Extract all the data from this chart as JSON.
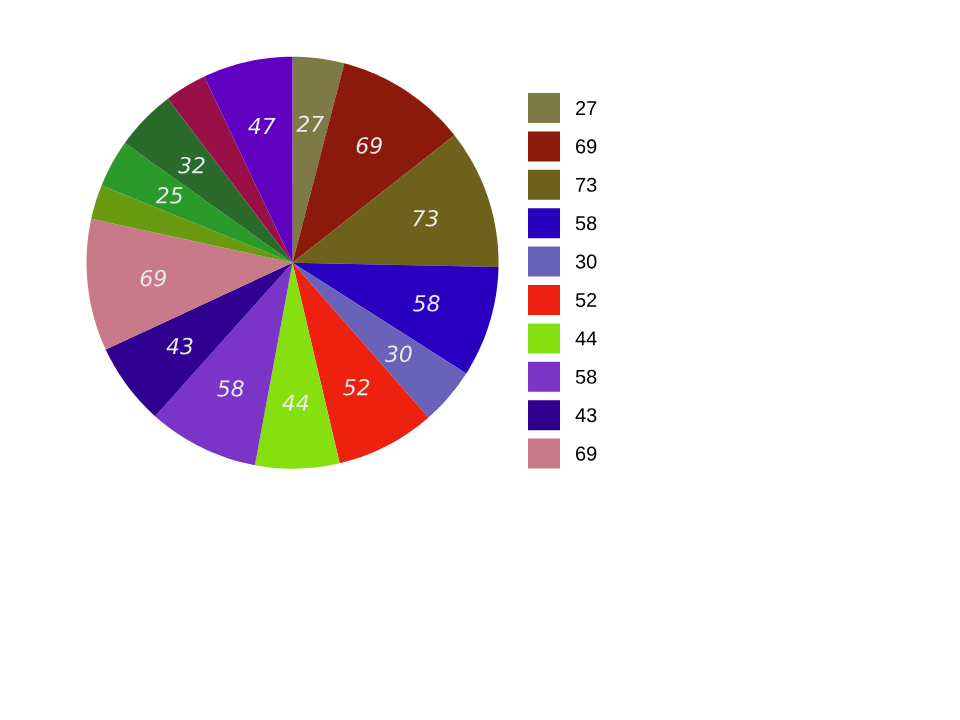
{
  "chart_data": {
    "type": "pie",
    "legend": "right",
    "categories": [
      "27",
      "69",
      "73",
      "58",
      "30",
      "52",
      "44",
      "58",
      "43",
      "69",
      null,
      null,
      null,
      null,
      null
    ],
    "values": [
      27,
      69,
      73,
      58,
      30,
      52,
      44,
      58,
      43,
      69,
      18,
      25,
      32,
      22,
      47
    ],
    "value_labels": [
      "27",
      "69",
      "73",
      "58",
      "30",
      "52",
      "44",
      "58",
      "43",
      "69",
      null,
      "25",
      "32",
      null,
      "47"
    ],
    "colors": [
      "#7d7a45",
      "#8b1a0a",
      "#6e611c",
      "#2a00c0",
      "#6a62b8",
      "#ee2010",
      "#86e010",
      "#7a35c8",
      "#300090",
      "#c87a88",
      "#6a9a10",
      "#2a9a2a",
      "#2a6a2a",
      "#991048",
      "#6000c0"
    ]
  }
}
